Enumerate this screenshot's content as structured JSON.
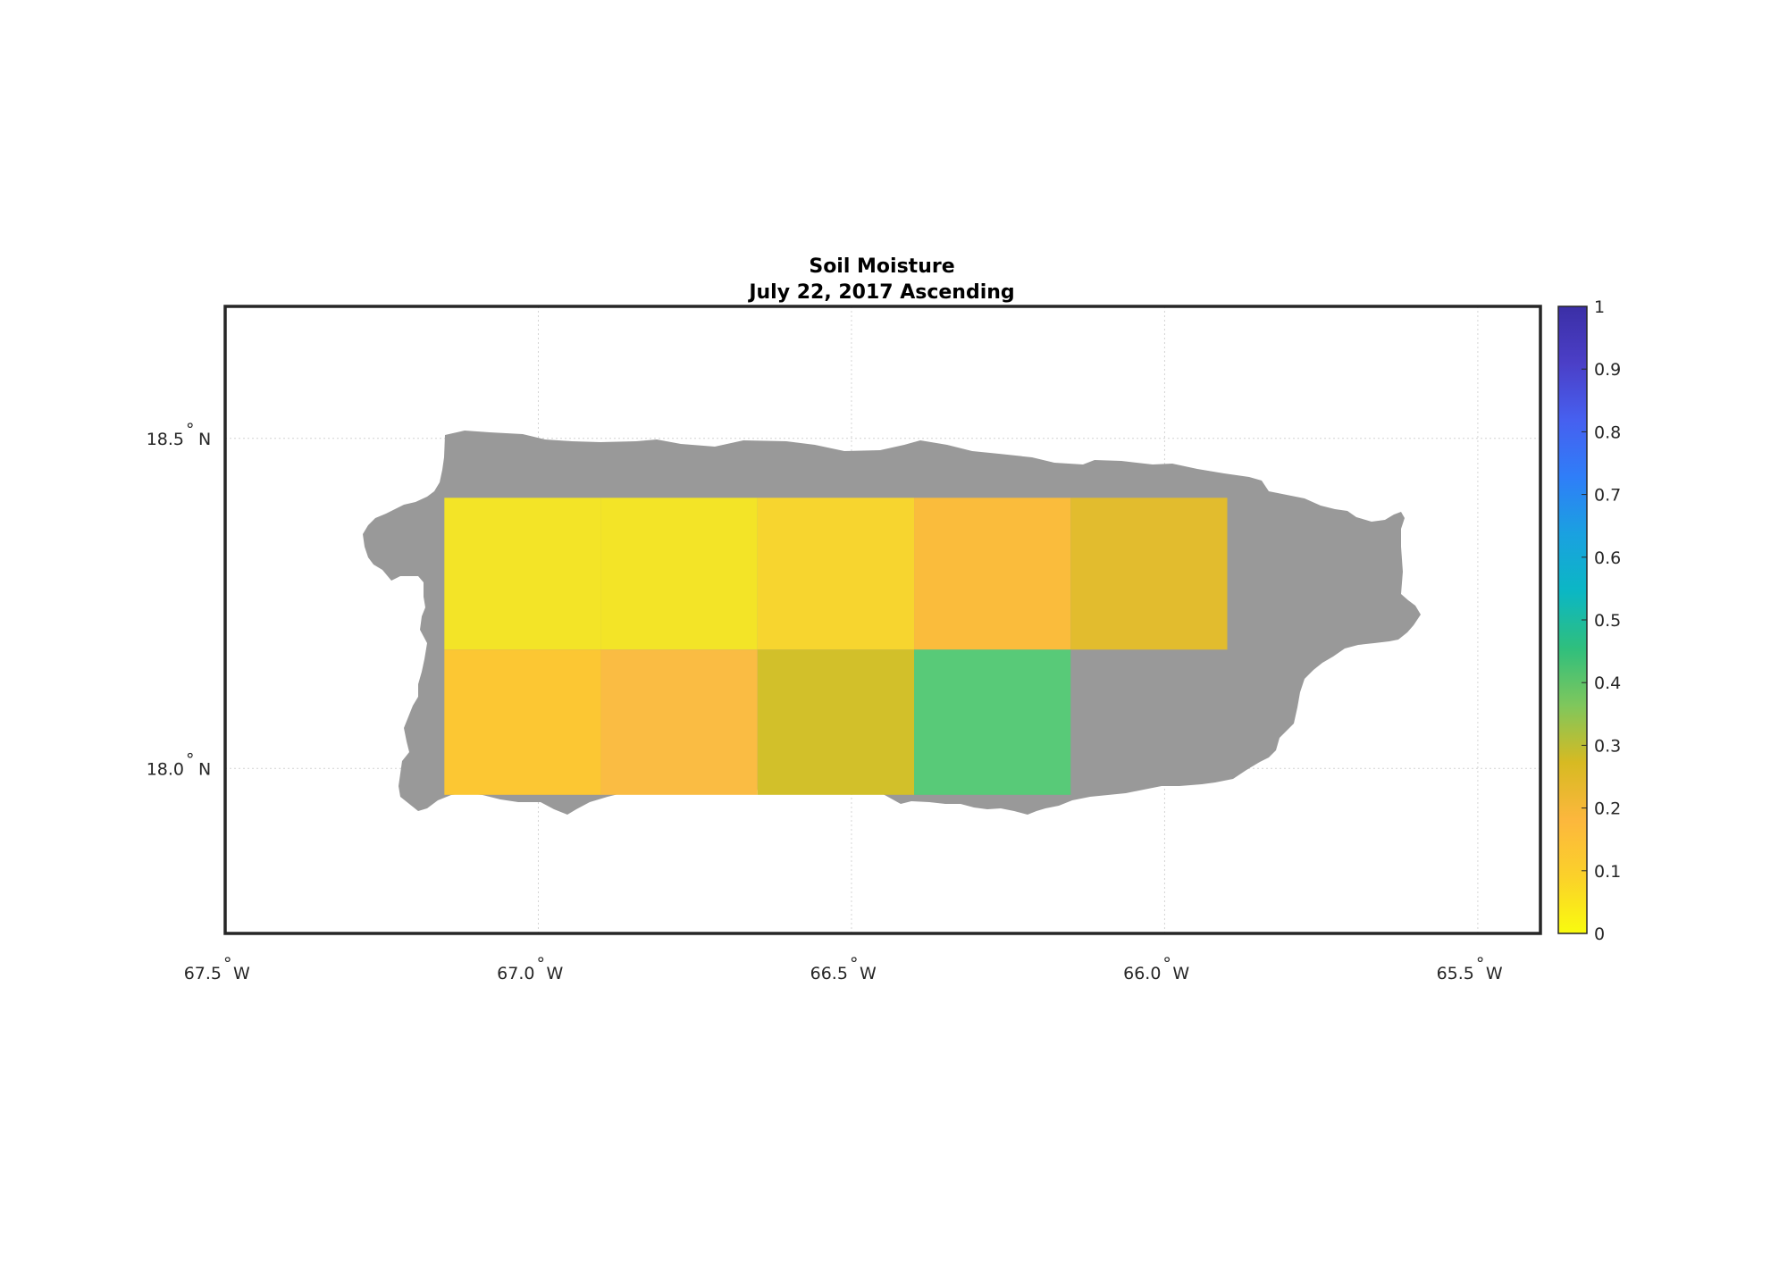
{
  "title": {
    "line1": "Soil Moisture",
    "line2": "July 22, 2017 Ascending"
  },
  "map": {
    "lon_range": [
      -67.5,
      -65.4
    ],
    "lat_range": [
      17.75,
      18.7
    ],
    "land_color": "#999999",
    "grid": true
  },
  "axes": {
    "x_ticks": [
      {
        "lon": -67.5,
        "label": "67.5",
        "hemi": "W"
      },
      {
        "lon": -67.0,
        "label": "67.0",
        "hemi": "W"
      },
      {
        "lon": -66.5,
        "label": "66.5",
        "hemi": "W"
      },
      {
        "lon": -66.0,
        "label": "66.0",
        "hemi": "W"
      },
      {
        "lon": -65.5,
        "label": "65.5",
        "hemi": "W"
      }
    ],
    "y_ticks": [
      {
        "lat": 18.5,
        "label": "18.5",
        "hemi": "N"
      },
      {
        "lat": 18.0,
        "label": "18.0",
        "hemi": "N"
      }
    ],
    "degree_symbol": "°"
  },
  "colorbar": {
    "min": 0,
    "max": 1,
    "ticks": [
      "0",
      "0.1",
      "0.2",
      "0.3",
      "0.4",
      "0.5",
      "0.6",
      "0.7",
      "0.8",
      "0.9",
      "1"
    ],
    "colors": [
      "#f9fb0e",
      "#fbd12a",
      "#fcb73d",
      "#d7ba22",
      "#7fc75c",
      "#2fbf7d",
      "#0bb7c4",
      "#1aa1e0",
      "#2f7ef8",
      "#4660f0",
      "#4b3fc7",
      "#3b2fa6"
    ]
  },
  "chart_data": {
    "type": "heatmap",
    "title": "Soil Moisture\nJuly 22, 2017 Ascending",
    "x_unit": "longitude (°W)",
    "y_unit": "latitude (°N)",
    "cells": [
      {
        "lon_min": -67.15,
        "lon_max": -66.9,
        "lat_min": 18.18,
        "lat_max": 18.41,
        "value": 0.02,
        "color": "#f3e427"
      },
      {
        "lon_min": -66.9,
        "lon_max": -66.65,
        "lat_min": 18.18,
        "lat_max": 18.41,
        "value": 0.02,
        "color": "#f3e427"
      },
      {
        "lon_min": -66.65,
        "lon_max": -66.4,
        "lat_min": 18.18,
        "lat_max": 18.41,
        "value": 0.08,
        "color": "#f7d52f"
      },
      {
        "lon_min": -66.4,
        "lon_max": -66.15,
        "lat_min": 18.18,
        "lat_max": 18.41,
        "value": 0.18,
        "color": "#fabc3c"
      },
      {
        "lon_min": -66.15,
        "lon_max": -65.9,
        "lat_min": 18.18,
        "lat_max": 18.41,
        "value": 0.23,
        "color": "#e2bc2e"
      },
      {
        "lon_min": -67.15,
        "lon_max": -66.9,
        "lat_min": 17.96,
        "lat_max": 18.18,
        "value": 0.12,
        "color": "#fcc733"
      },
      {
        "lon_min": -66.9,
        "lon_max": -66.65,
        "lat_min": 17.96,
        "lat_max": 18.18,
        "value": 0.18,
        "color": "#fabc43"
      },
      {
        "lon_min": -66.65,
        "lon_max": -66.4,
        "lat_min": 17.96,
        "lat_max": 18.18,
        "value": 0.27,
        "color": "#d2c02a"
      },
      {
        "lon_min": -66.4,
        "lon_max": -66.15,
        "lat_min": 17.96,
        "lat_max": 18.18,
        "value": 0.38,
        "color": "#58ca78"
      }
    ]
  }
}
